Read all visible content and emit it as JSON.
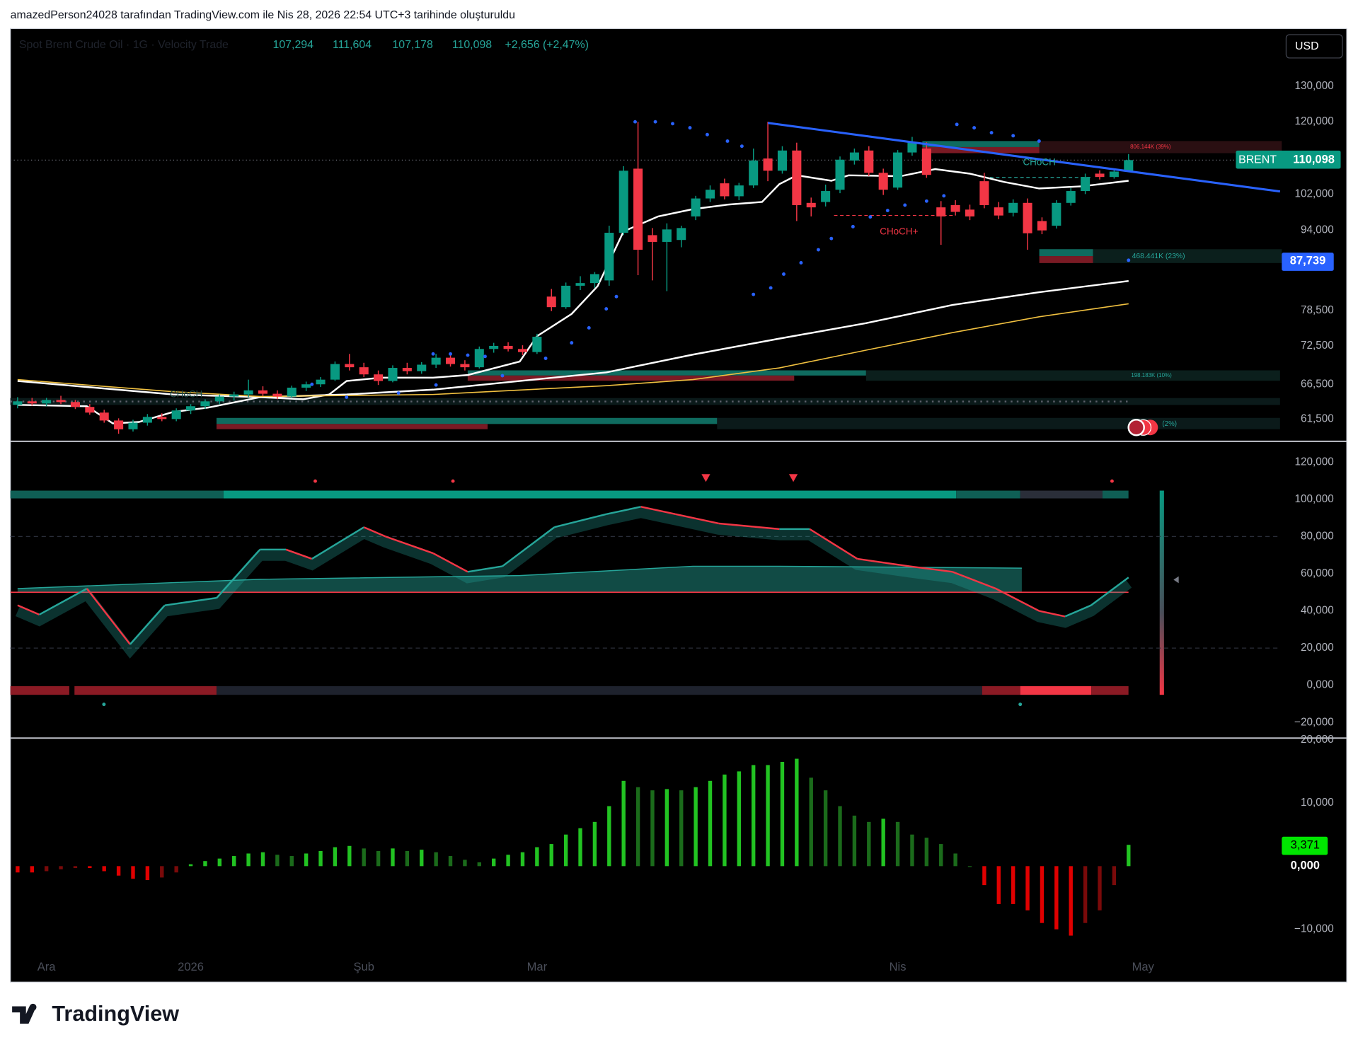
{
  "header": "amazedPerson24028 tarafından TradingView.com ile Nis 28, 2026 22:54 UTC+3 tarihinde oluşturuldu",
  "brand": "TradingView",
  "chart_data": [
    {
      "type": "candlestick",
      "title": "Spot Brent Crude Oil · 1G · Velocity Trade",
      "legend_values": [
        "107,294",
        "111,604",
        "107,178",
        "110,098",
        "+2,656 (+2,47%)"
      ],
      "currency": "USD",
      "symbol_label": "BRENT",
      "last_label": "110,098",
      "level_label": {
        "value": 87.739,
        "label": "87,739"
      },
      "colors": {
        "up": "#089981",
        "down": "#f23645"
      },
      "ohlc": [
        [
          63.5,
          64.6,
          63.0,
          64.0
        ],
        [
          64.0,
          64.5,
          63.4,
          63.7
        ],
        [
          63.7,
          64.5,
          63.3,
          64.2
        ],
        [
          64.2,
          64.8,
          63.6,
          63.9
        ],
        [
          63.9,
          64.2,
          62.9,
          63.2
        ],
        [
          63.2,
          63.6,
          62.1,
          62.4
        ],
        [
          62.4,
          62.8,
          61.0,
          61.3
        ],
        [
          61.3,
          61.6,
          59.5,
          60.1
        ],
        [
          60.1,
          61.4,
          59.8,
          61.0
        ],
        [
          61.0,
          62.2,
          60.6,
          61.8
        ],
        [
          61.8,
          62.3,
          61.2,
          61.5
        ],
        [
          61.5,
          63.0,
          61.2,
          62.7
        ],
        [
          62.7,
          63.6,
          62.2,
          63.3
        ],
        [
          63.3,
          64.3,
          62.9,
          64.0
        ],
        [
          64.0,
          65.0,
          63.6,
          64.7
        ],
        [
          64.7,
          65.4,
          64.1,
          65.0
        ],
        [
          65.0,
          67.2,
          64.6,
          65.6
        ],
        [
          65.6,
          66.2,
          64.8,
          65.1
        ],
        [
          65.1,
          65.6,
          64.3,
          64.7
        ],
        [
          64.7,
          66.3,
          64.5,
          66.0
        ],
        [
          66.0,
          66.9,
          65.5,
          66.5
        ],
        [
          66.5,
          67.6,
          66.1,
          67.2
        ],
        [
          67.2,
          70.0,
          67.0,
          69.6
        ],
        [
          69.6,
          71.2,
          68.6,
          69.1
        ],
        [
          69.1,
          69.8,
          67.6,
          68.0
        ],
        [
          68.0,
          68.6,
          66.4,
          67.0
        ],
        [
          67.0,
          69.4,
          66.8,
          69.0
        ],
        [
          69.0,
          69.8,
          68.0,
          68.5
        ],
        [
          68.5,
          69.9,
          68.1,
          69.5
        ],
        [
          69.5,
          71.2,
          69.0,
          70.6
        ],
        [
          70.6,
          71.0,
          69.2,
          69.6
        ],
        [
          69.6,
          70.2,
          68.6,
          69.1
        ],
        [
          69.1,
          72.4,
          68.9,
          72.0
        ],
        [
          72.0,
          73.0,
          71.4,
          72.5
        ],
        [
          72.5,
          73.1,
          71.6,
          72.0
        ],
        [
          72.0,
          72.6,
          71.0,
          71.5
        ],
        [
          71.5,
          74.5,
          71.2,
          74.0
        ],
        [
          81.0,
          82.4,
          78.4,
          79.1
        ],
        [
          79.1,
          83.6,
          78.8,
          83.0
        ],
        [
          83.0,
          84.8,
          82.2,
          83.5
        ],
        [
          83.5,
          85.6,
          82.6,
          85.2
        ],
        [
          84.0,
          95.0,
          83.0,
          93.5
        ],
        [
          93.5,
          108.6,
          93.0,
          107.5
        ],
        [
          108.0,
          120.0,
          85.0,
          90.0
        ],
        [
          93.0,
          94.5,
          84.0,
          91.6
        ],
        [
          91.6,
          95.5,
          82.0,
          94.2
        ],
        [
          92.0,
          95.0,
          90.5,
          94.5
        ],
        [
          97.0,
          101.6,
          96.2,
          101.0
        ],
        [
          101.0,
          104.0,
          100.2,
          103.0
        ],
        [
          104.5,
          105.6,
          100.8,
          101.5
        ],
        [
          101.5,
          104.6,
          100.6,
          104.0
        ],
        [
          104.0,
          113.0,
          103.4,
          110.0
        ],
        [
          110.5,
          120.0,
          105.0,
          107.5
        ],
        [
          107.5,
          113.6,
          106.8,
          112.5
        ],
        [
          112.5,
          114.5,
          96.0,
          99.5
        ],
        [
          100.0,
          101.2,
          97.0,
          99.0
        ],
        [
          100.2,
          104.2,
          99.2,
          102.7
        ],
        [
          103.0,
          111.0,
          102.2,
          110.2
        ],
        [
          110.0,
          113.0,
          109.0,
          112.0
        ],
        [
          112.5,
          113.6,
          106.2,
          107.0
        ],
        [
          107.0,
          108.0,
          101.8,
          103.0
        ],
        [
          103.5,
          112.6,
          103.0,
          112.0
        ],
        [
          112.0,
          116.0,
          111.2,
          114.5
        ],
        [
          113.0,
          114.6,
          105.8,
          106.5
        ],
        [
          99.0,
          100.4,
          91.0,
          97.0
        ],
        [
          99.5,
          100.6,
          97.2,
          98.0
        ],
        [
          98.5,
          99.6,
          96.2,
          97.0
        ],
        [
          105.0,
          107.0,
          98.8,
          99.5
        ],
        [
          99.0,
          100.2,
          96.4,
          97.2
        ],
        [
          97.8,
          100.8,
          97.0,
          100.0
        ],
        [
          100.0,
          101.0,
          90.0,
          93.4
        ],
        [
          96.0,
          96.8,
          93.2,
          94.0
        ],
        [
          95.0,
          100.6,
          94.4,
          100.0
        ],
        [
          100.0,
          103.4,
          99.4,
          102.7
        ],
        [
          102.7,
          106.8,
          102.0,
          106.0
        ],
        [
          106.8,
          107.6,
          105.4,
          106.0
        ],
        [
          106.0,
          108.0,
          105.6,
          107.3
        ],
        [
          107.294,
          111.604,
          107.178,
          110.098
        ]
      ],
      "lines": [
        {
          "color": "#ffffff",
          "x": [
            0,
            4.8,
            6.6,
            8.4,
            10.8,
            13.2,
            16.8,
            19.8,
            21.6,
            22.8,
            25.2,
            28.8,
            31.2,
            34.8,
            36,
            38.4,
            40.2,
            42,
            44.4,
            46.8,
            49.2,
            51.6,
            52.8,
            54,
            56.4,
            57.6,
            61.2,
            63.6,
            66,
            68.4,
            70.8,
            73.8,
            77
          ],
          "values": [
            63.5,
            63.3,
            60.9,
            61.1,
            62.5,
            63.1,
            64.6,
            64.3,
            65.0,
            67.0,
            67.5,
            67.5,
            67.9,
            70.0,
            74.1,
            77.9,
            82.9,
            93.8,
            97.0,
            98.6,
            99.6,
            100.2,
            104.3,
            106.4,
            105.1,
            106.4,
            106.2,
            107.9,
            106.8,
            104.8,
            103.3,
            103.8,
            105.1
          ]
        },
        {
          "color": "#ffffff",
          "x": [
            0,
            10.8,
            16.8,
            22.8,
            28.8,
            34.8,
            40.8,
            46.8,
            52.8,
            58.8,
            64.8,
            70.8,
            77
          ],
          "values": [
            67.0,
            65.0,
            64.6,
            65.0,
            65.7,
            67.0,
            68.3,
            71.1,
            73.7,
            76.3,
            79.5,
            81.8,
            83.9
          ]
        },
        {
          "color": "#f0c040",
          "x": [
            0,
            10.8,
            16.8,
            28.8,
            40.8,
            46.8,
            52.8,
            58.8,
            64.8,
            70.8,
            77
          ],
          "values": [
            67.2,
            65.4,
            64.7,
            65.0,
            66.3,
            67.2,
            69.0,
            71.8,
            74.7,
            77.4,
            79.7
          ]
        }
      ],
      "sar": {
        "color": "#2962ff",
        "x": [
          20.4,
          22.8,
          26.4,
          28.8,
          29,
          30,
          31.2,
          32.4,
          33.6,
          36.6,
          38.4,
          39.6,
          40.8,
          41.5,
          42.8,
          44.2,
          45.4,
          46.6,
          47.8,
          49.2,
          50.2,
          51,
          52.2,
          53.1,
          54.3,
          55.5,
          56.4,
          57.9,
          59.1,
          60.3,
          61.5,
          63,
          64.2,
          65.1,
          66.3,
          67.5,
          69,
          70.8,
          77
        ],
        "values": [
          66.5,
          64.6,
          65.2,
          71.2,
          66.4,
          71.2,
          71.0,
          70.8,
          67.8,
          70.5,
          73.0,
          75.5,
          78.8,
          81.0,
          120.0,
          120.0,
          119.5,
          118.4,
          116.6,
          114.9,
          113.6,
          81.4,
          82.6,
          85.2,
          87.4,
          90.0,
          92.3,
          94.8,
          96.9,
          98.3,
          99.5,
          100.4,
          101.6,
          119.3,
          118.4,
          117.1,
          116.3,
          114.9,
          87.9
        ]
      },
      "trendline": {
        "color": "#2962ff",
        "x": [
          52,
          87.5
        ],
        "values": [
          119.7,
          102.6
        ]
      },
      "annotations": [
        "CHoCH",
        "CHoCH+",
        "806.144K (39%)",
        "468.441K (23%)",
        "198.183K (10%)",
        "(2%)",
        "CHoCH"
      ],
      "xlim": [
        -0.5,
        87.5
      ],
      "xticks": [
        {
          "value": 2,
          "label": "Ara"
        },
        {
          "value": 12,
          "label": "2026"
        },
        {
          "value": 24,
          "label": "Şub"
        },
        {
          "value": 36,
          "label": "Mar"
        },
        {
          "value": 61,
          "label": "Nis"
        },
        {
          "value": 78,
          "label": "May"
        }
      ],
      "log": true,
      "ylim": [
        58.5,
        148
      ],
      "yticks": [
        {
          "value": 130,
          "label": "130,000"
        },
        {
          "value": 120,
          "label": "120,000"
        },
        {
          "value": 102,
          "label": "102,000"
        },
        {
          "value": 94,
          "label": "94,000"
        },
        {
          "value": 78.5,
          "label": "78,500"
        },
        {
          "value": 72.5,
          "label": "72,500"
        },
        {
          "value": 66.5,
          "label": "66,500"
        },
        {
          "value": 61.5,
          "label": "61,500"
        }
      ]
    },
    {
      "type": "line",
      "up_color": "#26a69a",
      "down_color": "#f23645",
      "series": [
        {
          "color": "#26a69a",
          "x": [
            0,
            1.5,
            4.8,
            7.8,
            10.2,
            13.8,
            16.8,
            18.6,
            20.4,
            24,
            25.5,
            28.8,
            31.2,
            33.6,
            37.2,
            40.8,
            43.2,
            45.6,
            48.6,
            52.8,
            54.9,
            58.2,
            61.8,
            64.8,
            67.8,
            70.8,
            72.6,
            74.4,
            77
          ],
          "values": [
            43,
            38,
            52,
            22,
            43,
            47,
            73,
            73,
            68,
            85,
            80,
            71,
            61,
            64,
            85,
            92,
            96,
            92,
            87,
            84,
            84,
            68,
            64,
            61,
            52,
            40,
            37,
            43,
            58
          ]
        },
        {
          "color": "#26a69a",
          "x": [
            0,
            16.8,
            34.8,
            46.8,
            52.8,
            69.6
          ],
          "values": [
            52,
            57,
            59,
            64,
            64,
            63
          ]
        }
      ],
      "levels": [
        80,
        50,
        20
      ],
      "ylim": [
        -28.4,
        131.2
      ],
      "yticks": [
        {
          "value": 120,
          "label": "120,000"
        },
        {
          "value": 100,
          "label": "100,000"
        },
        {
          "value": 80,
          "label": "80,000"
        },
        {
          "value": 60,
          "label": "60,000"
        },
        {
          "value": 40,
          "label": "40,000"
        },
        {
          "value": 20,
          "label": "20,000"
        },
        {
          "value": 0,
          "label": "0,000"
        },
        {
          "value": -20,
          "label": "−20,000"
        }
      ]
    },
    {
      "type": "bar",
      "colors": {
        "pos_up": "#22c322",
        "pos_down": "#1b6b1b",
        "neg_down": "#e00000",
        "neg_up": "#7a0a0a"
      },
      "values": [
        -1,
        -1,
        -0.8,
        -0.5,
        -0.3,
        -0.3,
        -0.8,
        -1.5,
        -2,
        -2.2,
        -1.8,
        -1,
        0.3,
        0.8,
        1.2,
        1.6,
        2,
        2.2,
        1.8,
        1.6,
        2,
        2.4,
        3,
        3.2,
        2.8,
        2.4,
        2.8,
        2.4,
        2.6,
        2.2,
        1.6,
        1,
        0.6,
        1.2,
        1.8,
        2.2,
        3,
        3.5,
        5,
        6,
        7,
        9.5,
        13.5,
        12.5,
        12,
        12.2,
        12,
        12.5,
        13.5,
        14.5,
        15,
        16,
        16,
        16.5,
        17,
        14,
        12,
        9.5,
        8,
        7,
        7.5,
        7,
        5,
        4.5,
        3.5,
        2,
        0,
        -3,
        -6,
        -6,
        -7,
        -9,
        -10,
        -11,
        -9,
        -7,
        -3,
        3.371
      ],
      "last_value_label": "3,371",
      "ylim": [
        -14.66,
        20.27
      ],
      "yticks": [
        {
          "value": 20,
          "label": "20,000"
        },
        {
          "value": 10,
          "label": "10,000"
        },
        {
          "value": 0,
          "label": "0,000"
        },
        {
          "value": -10,
          "label": "−10,000"
        }
      ]
    }
  ]
}
